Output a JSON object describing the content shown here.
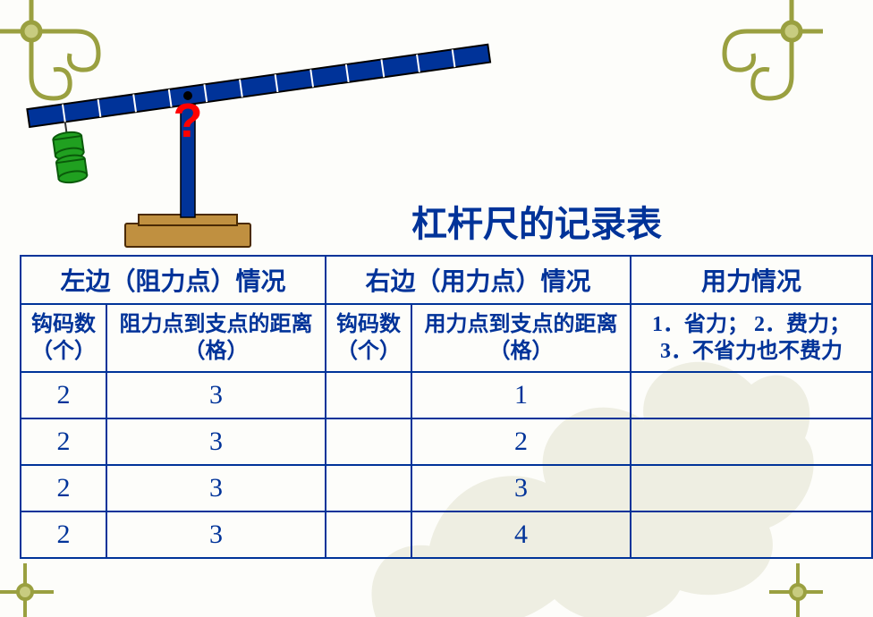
{
  "title": {
    "text": "杠杆尺的记录表",
    "color": "#003399"
  },
  "lever": {
    "beam_color": "#003399",
    "beam_border": "#000000",
    "tick_color": "#ffffff",
    "post_color": "#003399",
    "base_fill": "#c09040",
    "base_border": "#4a2a00",
    "weight_fill": "#20a020",
    "weight_border": "#0a5a0a",
    "question_color": "#ff0000",
    "question_text": "?"
  },
  "decor": {
    "corner_stroke": "#9aa040",
    "corner_fill": "#c8cc80",
    "leaf_fill": "#d0d0b0"
  },
  "table": {
    "border_color": "#003399",
    "text_color": "#003399",
    "headers": {
      "left": "左边（阻力点）情况",
      "right": "右边（用力点）情况",
      "force": "用力情况"
    },
    "subheaders": {
      "left_count": "钩码数（个）",
      "left_dist": "阻力点到支点的距离（格）",
      "right_count": "钩码数（个）",
      "right_dist": "用力点到支点的距离（格）",
      "force_note": "1．省力；  2．费力；\n3．不省力也不费力"
    },
    "rows": [
      {
        "lc": "2",
        "ld": "3",
        "rc": "",
        "rd": "1",
        "f": ""
      },
      {
        "lc": "2",
        "ld": "3",
        "rc": "",
        "rd": "2",
        "f": ""
      },
      {
        "lc": "2",
        "ld": "3",
        "rc": "",
        "rd": "3",
        "f": ""
      },
      {
        "lc": "2",
        "ld": "3",
        "rc": "",
        "rd": "4",
        "f": ""
      }
    ]
  }
}
